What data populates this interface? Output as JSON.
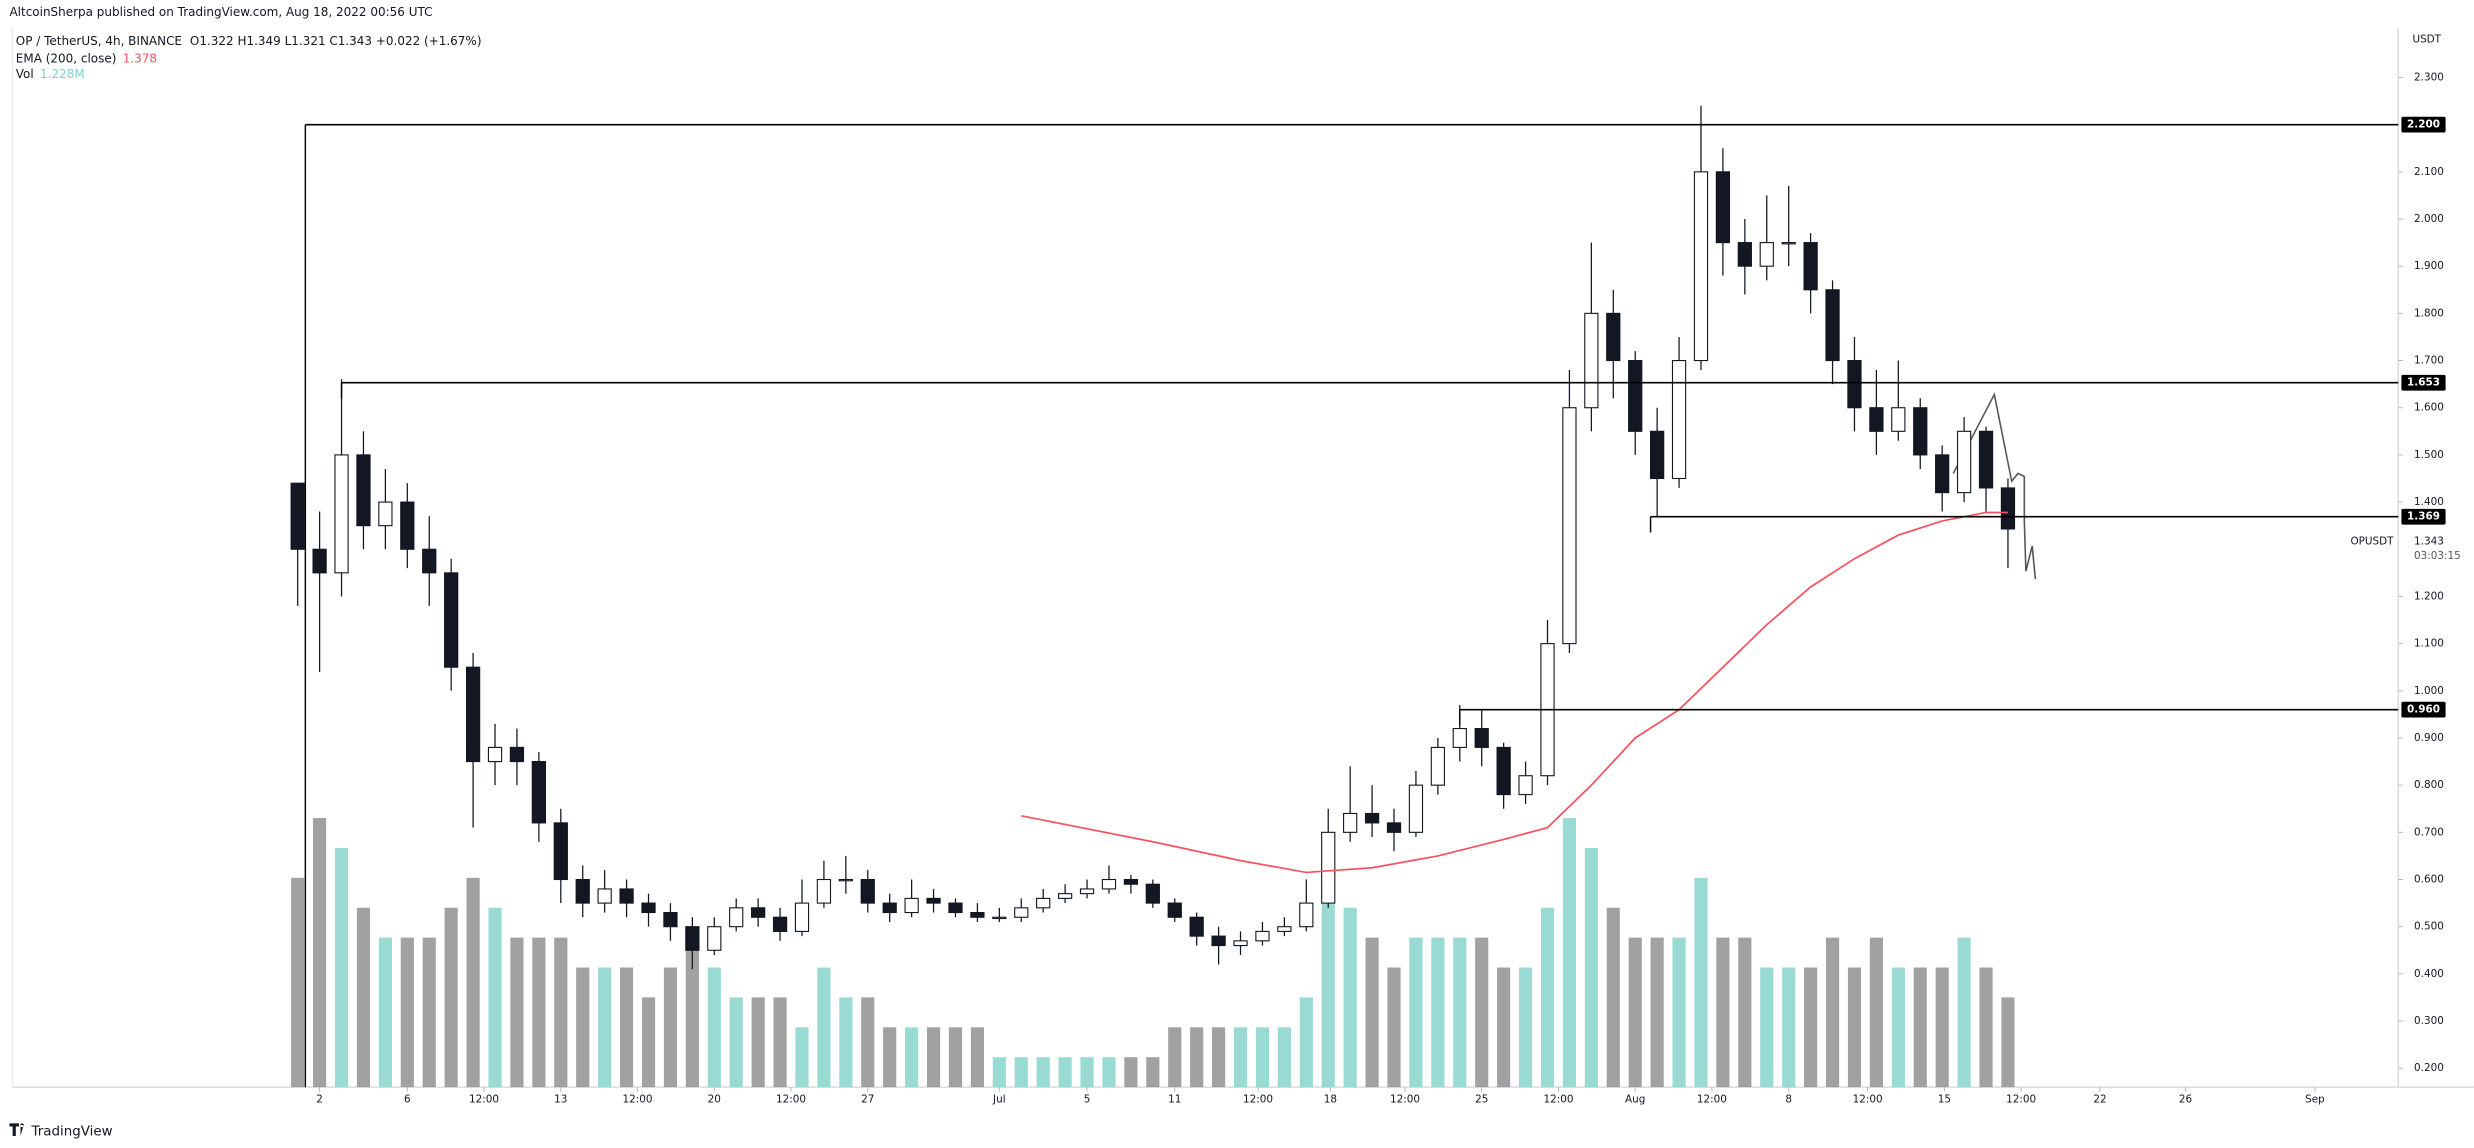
{
  "chart_data": {
    "type": "candlestick",
    "title": "AltcoinSherpa published on TradingView.com, Aug 18, 2022 00:56 UTC",
    "symbol": "OP / TetherUS, 4h, BINANCE",
    "ohlc": "O1.322 H1.349 L1.321 C1.343 +0.022 (+1.67%)",
    "y_axis_label": "USDT",
    "footer": "TradingView",
    "ylim": [
      0.16,
      2.4
    ],
    "xlim": [
      -12,
      96.8
    ],
    "yticks": [
      {
        "value": 0.2,
        "label": "0.200"
      },
      {
        "value": 0.3,
        "label": "0.300"
      },
      {
        "value": 0.4,
        "label": "0.400"
      },
      {
        "value": 0.5,
        "label": "0.500"
      },
      {
        "value": 0.6,
        "label": "0.600"
      },
      {
        "value": 0.7,
        "label": "0.700"
      },
      {
        "value": 0.8,
        "label": "0.800"
      },
      {
        "value": 0.9,
        "label": "0.900"
      },
      {
        "value": 1.0,
        "label": "1.000"
      },
      {
        "value": 1.1,
        "label": "1.100"
      },
      {
        "value": 1.2,
        "label": "1.200"
      },
      {
        "value": 1.4,
        "label": "1.400"
      },
      {
        "value": 1.5,
        "label": "1.500"
      },
      {
        "value": 1.6,
        "label": "1.600"
      },
      {
        "value": 1.7,
        "label": "1.700"
      },
      {
        "value": 1.8,
        "label": "1.800"
      },
      {
        "value": 1.9,
        "label": "1.900"
      },
      {
        "value": 2.0,
        "label": "2.000"
      },
      {
        "value": 2.1,
        "label": "2.100"
      },
      {
        "value": 2.3,
        "label": "2.300"
      }
    ],
    "xticks": [
      2,
      6,
      {
        "value": 9.5,
        "label": "12:00"
      },
      13,
      {
        "value": 16.5,
        "label": "12:00"
      },
      20,
      {
        "value": 23.5,
        "label": "12:00"
      },
      27,
      {
        "value": 33,
        "label": "Jul"
      },
      {
        "value": 37,
        "label": "5"
      },
      {
        "value": 41,
        "label": "11"
      },
      {
        "value": 44.8,
        "label": "12:00"
      },
      {
        "value": 48.1,
        "label": "18"
      },
      {
        "value": 51.5,
        "label": "12:00"
      },
      {
        "value": 55,
        "label": "25"
      },
      {
        "value": 58.5,
        "label": "12:00"
      },
      {
        "value": 62,
        "label": "Aug"
      },
      {
        "value": 65.5,
        "label": "12:00"
      },
      {
        "value": 69,
        "label": "8"
      },
      {
        "value": 72.6,
        "label": "12:00"
      },
      {
        "value": 76.1,
        "label": "15"
      },
      {
        "value": 79.6,
        "label": "12:00"
      },
      {
        "value": 83.2,
        "label": "22"
      },
      {
        "value": 87.1,
        "label": "26"
      },
      {
        "value": 93,
        "label": "Sep"
      }
    ],
    "x": [
      1,
      2,
      3,
      4,
      5,
      6,
      7,
      8,
      9,
      10,
      11,
      12,
      13,
      14,
      15,
      16,
      17,
      18,
      19,
      20,
      21,
      22,
      23,
      24,
      25,
      26,
      27,
      28,
      29,
      30,
      31,
      32,
      33,
      34,
      35,
      36,
      37,
      38,
      39,
      40,
      41,
      42,
      43,
      44,
      45,
      46,
      47,
      48,
      49,
      50,
      51,
      52,
      53,
      54,
      55,
      56,
      57,
      58,
      59,
      60,
      61,
      62,
      63,
      64,
      65,
      66,
      67,
      68,
      69,
      70,
      71,
      72,
      73,
      74,
      75,
      76,
      77,
      78,
      79
    ],
    "open": [
      1.44,
      1.3,
      1.25,
      1.5,
      1.35,
      1.4,
      1.3,
      1.25,
      1.05,
      0.85,
      0.88,
      0.85,
      0.72,
      0.6,
      0.55,
      0.58,
      0.55,
      0.53,
      0.5,
      0.45,
      0.5,
      0.54,
      0.52,
      0.49,
      0.55,
      0.6,
      0.6,
      0.55,
      0.53,
      0.56,
      0.55,
      0.53,
      0.52,
      0.52,
      0.54,
      0.56,
      0.57,
      0.58,
      0.6,
      0.59,
      0.55,
      0.52,
      0.48,
      0.46,
      0.47,
      0.49,
      0.5,
      0.55,
      0.7,
      0.74,
      0.72,
      0.7,
      0.8,
      0.88,
      0.92,
      0.88,
      0.78,
      0.82,
      1.1,
      1.6,
      1.8,
      1.7,
      1.55,
      1.45,
      1.7,
      2.1,
      1.95,
      1.9,
      1.95,
      1.95,
      1.85,
      1.7,
      1.6,
      1.55,
      1.6,
      1.5,
      1.42,
      1.55,
      1.43
    ],
    "high": [
      1.44,
      1.38,
      1.66,
      1.55,
      1.47,
      1.44,
      1.37,
      1.28,
      1.08,
      0.93,
      0.92,
      0.87,
      0.75,
      0.63,
      0.62,
      0.6,
      0.57,
      0.55,
      0.52,
      0.52,
      0.56,
      0.56,
      0.54,
      0.6,
      0.64,
      0.65,
      0.62,
      0.57,
      0.6,
      0.58,
      0.56,
      0.55,
      0.54,
      0.56,
      0.58,
      0.59,
      0.6,
      0.63,
      0.61,
      0.6,
      0.56,
      0.53,
      0.5,
      0.49,
      0.51,
      0.52,
      0.6,
      0.75,
      0.84,
      0.8,
      0.75,
      0.83,
      0.9,
      0.97,
      0.96,
      0.89,
      0.85,
      1.15,
      1.68,
      1.95,
      1.85,
      1.72,
      1.6,
      1.75,
      2.24,
      2.15,
      2.0,
      2.05,
      2.07,
      1.97,
      1.87,
      1.75,
      1.68,
      1.7,
      1.62,
      1.52,
      1.58,
      1.56,
      1.45
    ],
    "low": [
      1.18,
      1.04,
      1.2,
      1.3,
      1.3,
      1.26,
      1.18,
      1.0,
      0.71,
      0.8,
      0.8,
      0.68,
      0.55,
      0.52,
      0.53,
      0.52,
      0.5,
      0.47,
      0.41,
      0.44,
      0.49,
      0.5,
      0.47,
      0.48,
      0.54,
      0.57,
      0.53,
      0.51,
      0.52,
      0.53,
      0.52,
      0.51,
      0.51,
      0.51,
      0.53,
      0.55,
      0.56,
      0.57,
      0.57,
      0.54,
      0.51,
      0.46,
      0.42,
      0.44,
      0.46,
      0.48,
      0.49,
      0.54,
      0.68,
      0.69,
      0.66,
      0.69,
      0.78,
      0.85,
      0.84,
      0.75,
      0.76,
      0.8,
      1.08,
      1.55,
      1.62,
      1.5,
      1.37,
      1.43,
      1.68,
      1.88,
      1.84,
      1.87,
      1.9,
      1.8,
      1.65,
      1.55,
      1.5,
      1.53,
      1.47,
      1.38,
      1.4,
      1.38,
      1.26
    ],
    "close": [
      1.3,
      1.25,
      1.5,
      1.35,
      1.4,
      1.3,
      1.25,
      1.05,
      0.85,
      0.88,
      0.85,
      0.72,
      0.6,
      0.55,
      0.58,
      0.55,
      0.53,
      0.5,
      0.45,
      0.5,
      0.54,
      0.52,
      0.49,
      0.55,
      0.6,
      0.6,
      0.55,
      0.53,
      0.56,
      0.55,
      0.53,
      0.52,
      0.52,
      0.54,
      0.56,
      0.57,
      0.58,
      0.6,
      0.59,
      0.55,
      0.52,
      0.48,
      0.46,
      0.47,
      0.49,
      0.5,
      0.55,
      0.7,
      0.74,
      0.72,
      0.7,
      0.8,
      0.88,
      0.92,
      0.88,
      0.78,
      0.82,
      1.1,
      1.6,
      1.8,
      1.7,
      1.55,
      1.45,
      1.7,
      2.1,
      1.95,
      1.9,
      1.95,
      1.95,
      1.85,
      1.7,
      1.6,
      1.55,
      1.6,
      1.5,
      1.42,
      1.55,
      1.43,
      1.343
    ],
    "up_color": "#ffffff",
    "down_color": "#131722",
    "volume": [
      7,
      9,
      8,
      6,
      5,
      5,
      5,
      6,
      7,
      6,
      5,
      5,
      5,
      4,
      4,
      4,
      3,
      4,
      5,
      4,
      3,
      3,
      3,
      2,
      4,
      3,
      3,
      2,
      2,
      2,
      2,
      2,
      1,
      1,
      1,
      1,
      1,
      1,
      1,
      1,
      2,
      2,
      2,
      2,
      2,
      2,
      3,
      7,
      6,
      5,
      4,
      5,
      5,
      5,
      5,
      4,
      4,
      6,
      9,
      8,
      6,
      5,
      5,
      5,
      7,
      5,
      5,
      4,
      4,
      4,
      5,
      4,
      5,
      4,
      4,
      4,
      5,
      4,
      3
    ],
    "vlim": [
      0,
      9.5
    ],
    "volume_legend": {
      "name": "Vol",
      "value_label": "1.228M",
      "up_color": "#7fd1c8",
      "down_color": "#8a8a8a"
    },
    "ema": {
      "name": "EMA (200, close)",
      "value_label": "1.378",
      "color": "#f7525f",
      "x": [
        34,
        40,
        44,
        47,
        50,
        53,
        56,
        58,
        60,
        62,
        64,
        66,
        68,
        70,
        72,
        74,
        76,
        78,
        79
      ],
      "values": [
        0.735,
        0.68,
        0.64,
        0.615,
        0.625,
        0.65,
        0.685,
        0.71,
        0.8,
        0.9,
        0.96,
        1.05,
        1.14,
        1.22,
        1.28,
        1.33,
        1.36,
        1.378,
        1.378
      ]
    },
    "levels": [
      {
        "value": 2.2,
        "label": "2.200",
        "from": 1.35
      },
      {
        "value": 1.653,
        "label": "1.653",
        "from": 3
      },
      {
        "value": 1.369,
        "label": "1.369",
        "from": 62.7
      },
      {
        "value": 0.96,
        "label": "0.960",
        "from": 54
      }
    ],
    "last": {
      "value": 1.343,
      "countdown": "03:03:15",
      "symbol": "OPUSDT"
    }
  }
}
